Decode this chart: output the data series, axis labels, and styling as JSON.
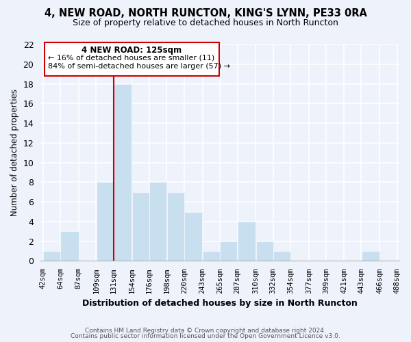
{
  "title": "4, NEW ROAD, NORTH RUNCTON, KING'S LYNN, PE33 0RA",
  "subtitle": "Size of property relative to detached houses in North Runcton",
  "xlabel": "Distribution of detached houses by size in North Runcton",
  "ylabel": "Number of detached properties",
  "bar_color": "#c8dff0",
  "marker_color": "#cc0000",
  "bin_edges": [
    42,
    64,
    87,
    109,
    131,
    154,
    176,
    198,
    220,
    243,
    265,
    287,
    310,
    332,
    354,
    377,
    399,
    421,
    443,
    466,
    488
  ],
  "bin_labels": [
    "42sqm",
    "64sqm",
    "87sqm",
    "109sqm",
    "131sqm",
    "154sqm",
    "176sqm",
    "198sqm",
    "220sqm",
    "243sqm",
    "265sqm",
    "287sqm",
    "310sqm",
    "332sqm",
    "354sqm",
    "377sqm",
    "399sqm",
    "421sqm",
    "443sqm",
    "466sqm",
    "488sqm"
  ],
  "counts": [
    1,
    3,
    0,
    8,
    18,
    7,
    8,
    7,
    5,
    1,
    2,
    4,
    2,
    1,
    0,
    0,
    0,
    0,
    1,
    0
  ],
  "annotation_title": "4 NEW ROAD: 125sqm",
  "annotation_line1": "← 16% of detached houses are smaller (11)",
  "annotation_line2": "84% of semi-detached houses are larger (57) →",
  "ylim": [
    0,
    22
  ],
  "yticks": [
    0,
    2,
    4,
    6,
    8,
    10,
    12,
    14,
    16,
    18,
    20,
    22
  ],
  "footer1": "Contains HM Land Registry data © Crown copyright and database right 2024.",
  "footer2": "Contains public sector information licensed under the Open Government Licence v3.0.",
  "background_color": "#eef2fb"
}
